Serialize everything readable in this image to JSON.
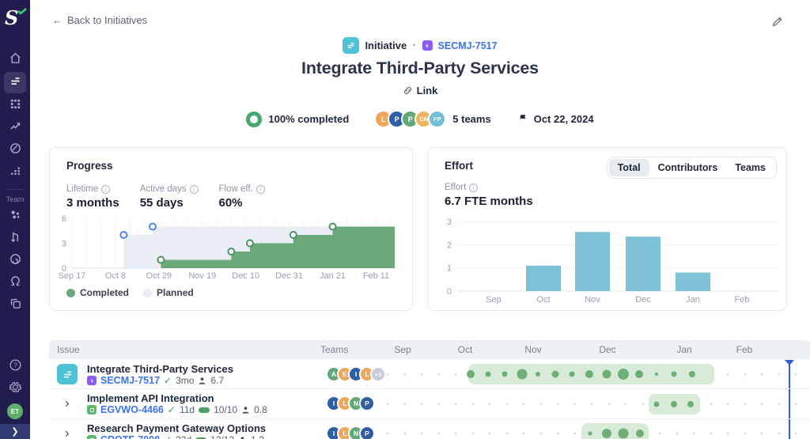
{
  "app": {
    "logo_letter": "S"
  },
  "sidebar": {
    "team_label": "Team",
    "avatar_initials": "ET",
    "items": [
      {
        "name": "home",
        "icon": "home",
        "active": false
      },
      {
        "name": "initiatives",
        "icon": "initiative",
        "active": true
      },
      {
        "name": "apps",
        "icon": "grid",
        "active": false
      },
      {
        "name": "insights",
        "icon": "trend",
        "active": false
      },
      {
        "name": "goals",
        "icon": "disc",
        "active": false
      },
      {
        "name": "reports",
        "icon": "steps",
        "active": false
      }
    ],
    "team_items": [
      {
        "name": "members",
        "icon": "people"
      },
      {
        "name": "pull-requests",
        "icon": "pr"
      },
      {
        "name": "focus",
        "icon": "spiral"
      },
      {
        "name": "discussions",
        "icon": "chat"
      },
      {
        "name": "boards",
        "icon": "copy"
      }
    ],
    "bottom_items": [
      {
        "name": "help",
        "icon": "help"
      },
      {
        "name": "settings",
        "icon": "gear"
      }
    ],
    "collapse_chevron": "❯"
  },
  "header": {
    "back_label": "Back to Initiatives",
    "back_arrow": "←"
  },
  "hero": {
    "type_label": "Initiative",
    "separator": "·",
    "issue_key": "SECMJ-7517",
    "title": "Integrate Third-Party Services",
    "link_label": "Link",
    "completion": "100% completed",
    "teams_label": "5 teams",
    "date": "Oct 22, 2024",
    "avatars": [
      {
        "label": "L",
        "color": "#EFA75C"
      },
      {
        "label": "P",
        "color": "#2E5FA3"
      },
      {
        "label": "P",
        "color": "#63A878"
      },
      {
        "label": "CN",
        "color": "#EDB45E"
      },
      {
        "label": "FP",
        "color": "#74BDD6"
      }
    ]
  },
  "progress_card": {
    "title": "Progress",
    "stats": [
      {
        "label": "Lifetime",
        "value": "3 months"
      },
      {
        "label": "Active days",
        "value": "55 days"
      },
      {
        "label": "Flow eff.",
        "value": "60%"
      }
    ],
    "legend": [
      {
        "label": "Completed",
        "color": "#6BA97B"
      },
      {
        "label": "Planned",
        "color": "#E9EDF4"
      }
    ]
  },
  "effort_card": {
    "title": "Effort",
    "tabs": [
      {
        "label": "Total",
        "active": true
      },
      {
        "label": "Contributors",
        "active": false
      },
      {
        "label": "Teams",
        "active": false
      }
    ],
    "stat_label": "Effort",
    "stat_value": "6.7 FTE months"
  },
  "chart_data": [
    {
      "id": "progress-burnup",
      "type": "area",
      "title": "Progress",
      "x_tick_labels": [
        "Sep 17",
        "Oct 8",
        "Oct 29",
        "Nov 19",
        "Dec 10",
        "Dec 31",
        "Jan 21",
        "Feb 11"
      ],
      "x_tick_days": [
        0,
        21,
        42,
        63,
        84,
        105,
        126,
        147
      ],
      "x_domain_days": [
        0,
        156
      ],
      "ylim": [
        0,
        6
      ],
      "yticks": [
        0,
        3,
        6
      ],
      "grid": "weekly-vertical",
      "legend_position": "bottom-left",
      "series": [
        {
          "name": "Planned",
          "fill": "#E9EDF4",
          "marker_stroke": "#4F83E8",
          "steps": [
            {
              "day": 25,
              "value": 4
            },
            {
              "day": 39,
              "value": 5
            }
          ]
        },
        {
          "name": "Completed",
          "fill": "#6BA97B",
          "marker_stroke": "#4E9464",
          "steps": [
            {
              "day": 43,
              "value": 1
            },
            {
              "day": 77,
              "value": 2
            },
            {
              "day": 86,
              "value": 3
            },
            {
              "day": 107,
              "value": 4
            },
            {
              "day": 126,
              "value": 5
            }
          ]
        }
      ]
    },
    {
      "id": "effort-by-month",
      "type": "bar",
      "categories": [
        "Sep",
        "Oct",
        "Nov",
        "Dec",
        "Jan",
        "Feb"
      ],
      "values": [
        0,
        1.1,
        2.55,
        2.35,
        0.8,
        0
      ],
      "ylim": [
        0,
        3
      ],
      "yticks": [
        0,
        1,
        2,
        3
      ],
      "grid": "horizontal",
      "bar_color": "#7DC2D6"
    }
  ],
  "issues_table": {
    "columns": [
      "Issue",
      "Teams"
    ],
    "months": [
      "Sep",
      "Oct",
      "Nov",
      "Dec",
      "Jan",
      "Feb"
    ],
    "rows": [
      {
        "title": "Integrate Third-Party Services",
        "leading": "icon",
        "key": "SECMJ-7517",
        "key_color": "#8B5CF6",
        "duration": "3mo",
        "progress": null,
        "effort": "6.7",
        "teams": [
          {
            "label": "A",
            "color": "#63A878"
          },
          {
            "label": "E",
            "color": "#EFA75C"
          },
          {
            "label": "I",
            "color": "#2E5FA3"
          },
          {
            "label": "L",
            "color": "#EFA75C"
          },
          {
            "label": "+3",
            "color": "#C7CCD6"
          }
        ]
      },
      {
        "title": "Implement API Integration",
        "leading": "chevron",
        "key": "EGVWO-4466",
        "key_color": "#5CB86A",
        "duration": "11d",
        "progress": "10/10",
        "effort": "0.8",
        "teams": [
          {
            "label": "I",
            "color": "#2E5FA3"
          },
          {
            "label": "L",
            "color": "#EFA75C"
          },
          {
            "label": "N",
            "color": "#63A878"
          },
          {
            "label": "P",
            "color": "#2E5FA3"
          }
        ]
      },
      {
        "title": "Research Payment Gateway Options",
        "leading": "chevron",
        "key": "CROTF-7008",
        "key_color": "#5CB86A",
        "duration": "22d",
        "progress": "12/12",
        "effort": "1.2",
        "teams": [
          {
            "label": "I",
            "color": "#2E5FA3"
          },
          {
            "label": "L",
            "color": "#EFA75C"
          },
          {
            "label": "N",
            "color": "#63A878"
          },
          {
            "label": "P",
            "color": "#2E5FA3"
          }
        ]
      }
    ],
    "timeline": {
      "dot_color": "#6FAE77",
      "idle_dot_color": "#D9DEE5",
      "pill_color": "#D8EAD8",
      "today_color": "#2F5FDD",
      "today_x": 516,
      "month_centers": [
        28,
        107,
        193,
        287,
        384,
        460
      ],
      "rows": [
        {
          "pill": [
            111,
            422
          ],
          "dots": [
            [
              114,
              10
            ],
            [
              136,
              7
            ],
            [
              157,
              7
            ],
            [
              179,
              13
            ],
            [
              199,
              6
            ],
            [
              221,
              9
            ],
            [
              242,
              7
            ],
            [
              264,
              10
            ],
            [
              286,
              11
            ],
            [
              307,
              14
            ],
            [
              327,
              10
            ],
            [
              349,
              4
            ],
            [
              371,
              7
            ],
            [
              394,
              8
            ]
          ]
        },
        {
          "pill": [
            339,
            404
          ],
          "dots": [
            [
              349,
              7
            ],
            [
              371,
              8
            ],
            [
              392,
              8
            ]
          ]
        },
        {
          "pill": [
            254,
            339
          ],
          "dots": [
            [
              265,
              5
            ],
            [
              286,
              12
            ],
            [
              307,
              13
            ],
            [
              328,
              10
            ]
          ]
        }
      ]
    }
  }
}
